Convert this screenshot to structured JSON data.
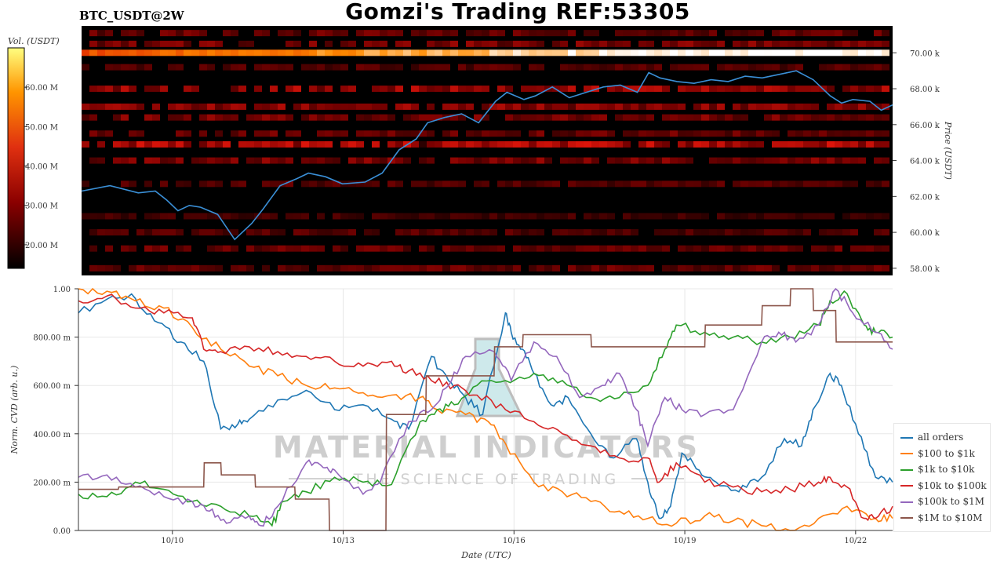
{
  "header": {
    "title": "Gomzi's Trading REF:53305",
    "symbol": "BTC_USDT@2W"
  },
  "watermark": {
    "line1": "MATERIAL INDICATORS",
    "line2": "THE SCIENCE OF TRADING"
  },
  "colors": {
    "price_line": "#3a8fd6",
    "heatmap_low": "#000000",
    "heatmap_mid": "#cc1a1a",
    "heatmap_high": "#ff8c00",
    "heatmap_max": "#ffffff"
  },
  "chart_data": [
    {
      "type": "heatmap",
      "title": "",
      "colorbar_label": "Vol. (USDT)",
      "colorbar_ticks": [
        "60.00 M",
        "50.00 M",
        "40.00 M",
        "30.00 M",
        "20.00 M"
      ],
      "colorbar_range": [
        14,
        70
      ],
      "ylabel": "Price (USDT)",
      "y_ticks": [
        "70.00 k",
        "68.00 k",
        "66.00 k",
        "64.00 k",
        "62.00 k",
        "60.00 k",
        "58.00 k"
      ],
      "ylim": [
        57.6,
        71.5
      ],
      "xlim_days": [
        0,
        14.3
      ],
      "price_series": {
        "name": "BTC_USDT",
        "x": [
          0,
          0.5,
          1,
          1.3,
          1.5,
          1.7,
          1.9,
          2.1,
          2.4,
          2.7,
          3.0,
          3.2,
          3.5,
          3.8,
          4.0,
          4.3,
          4.6,
          5.0,
          5.3,
          5.6,
          5.9,
          6.1,
          6.4,
          6.7,
          7.0,
          7.3,
          7.5,
          7.8,
          8.0,
          8.3,
          8.6,
          8.9,
          9.2,
          9.5,
          9.8,
          10.0,
          10.2,
          10.5,
          10.8,
          11.1,
          11.4,
          11.7,
          12.0,
          12.3,
          12.6,
          12.9,
          13.2,
          13.4,
          13.6,
          13.9,
          14.1,
          14.3
        ],
        "y": [
          62.3,
          62.6,
          62.2,
          62.3,
          61.8,
          61.2,
          61.5,
          61.4,
          61.0,
          59.6,
          60.5,
          61.3,
          62.6,
          63.0,
          63.3,
          63.1,
          62.7,
          62.8,
          63.3,
          64.6,
          65.2,
          66.1,
          66.4,
          66.6,
          66.1,
          67.3,
          67.8,
          67.4,
          67.6,
          68.1,
          67.5,
          67.8,
          68.1,
          68.2,
          67.8,
          68.9,
          68.6,
          68.4,
          68.3,
          68.5,
          68.4,
          68.7,
          68.6,
          68.8,
          69.0,
          68.5,
          67.6,
          67.2,
          67.4,
          67.3,
          66.8,
          67.1
        ]
      },
      "liquidity_bands": [
        {
          "price": 71.1,
          "intensity": 0.3
        },
        {
          "price": 70.5,
          "intensity": 0.35
        },
        {
          "price": 70.0,
          "intensity": 0.8
        },
        {
          "price": 69.2,
          "intensity": 0.25
        },
        {
          "price": 68.0,
          "intensity": 0.45
        },
        {
          "price": 67.0,
          "intensity": 0.4
        },
        {
          "price": 66.4,
          "intensity": 0.35
        },
        {
          "price": 65.5,
          "intensity": 0.3
        },
        {
          "price": 64.9,
          "intensity": 0.5
        },
        {
          "price": 64.0,
          "intensity": 0.35
        },
        {
          "price": 62.7,
          "intensity": 0.25
        },
        {
          "price": 60.9,
          "intensity": 0.2
        },
        {
          "price": 60.0,
          "intensity": 0.25
        },
        {
          "price": 59.1,
          "intensity": 0.3
        },
        {
          "price": 58.0,
          "intensity": 0.3
        }
      ]
    },
    {
      "type": "line",
      "title": "",
      "xlabel": "Date (UTC)",
      "ylabel": "Norm. CVD (arb. u.)",
      "x_ticks": [
        "10/10",
        "10/13",
        "10/16",
        "10/19",
        "10/22"
      ],
      "x_tick_days": [
        1.65,
        4.65,
        7.65,
        10.65,
        13.65
      ],
      "y_ticks": [
        "1.00",
        "800.00 m",
        "600.00 m",
        "400.00 m",
        "200.00 m",
        "0.00"
      ],
      "ylim": [
        0,
        1
      ],
      "xlim_days": [
        0,
        14.3
      ],
      "series": [
        {
          "name": "all orders",
          "color": "#1f77b4",
          "x": [
            0,
            0.6,
            1.0,
            1.4,
            1.8,
            2.2,
            2.5,
            2.8,
            3.0,
            3.5,
            4.0,
            4.5,
            5.0,
            5.5,
            5.8,
            6.2,
            6.5,
            6.8,
            7.1,
            7.5,
            7.6,
            7.8,
            8.0,
            8.3,
            8.6,
            9.0,
            9.4,
            9.8,
            10.0,
            10.2,
            10.4,
            10.6,
            10.9,
            11.2,
            11.6,
            12.0,
            12.4,
            12.7,
            12.9,
            13.2,
            13.4,
            13.7,
            14.0,
            14.3
          ],
          "y": [
            0.9,
            0.97,
            0.96,
            0.86,
            0.78,
            0.7,
            0.42,
            0.44,
            0.46,
            0.54,
            0.58,
            0.5,
            0.52,
            0.46,
            0.42,
            0.72,
            0.62,
            0.55,
            0.48,
            0.9,
            0.82,
            0.75,
            0.65,
            0.52,
            0.55,
            0.4,
            0.3,
            0.38,
            0.2,
            0.05,
            0.1,
            0.32,
            0.25,
            0.2,
            0.16,
            0.22,
            0.38,
            0.35,
            0.5,
            0.65,
            0.6,
            0.4,
            0.22,
            0.2
          ]
        },
        {
          "name": "$100 to $1k",
          "color": "#ff7f0e",
          "x": [
            0,
            0.5,
            1.0,
            1.5,
            2.0,
            2.5,
            3.0,
            3.5,
            4.0,
            4.5,
            5.0,
            5.5,
            6.0,
            6.3,
            6.8,
            7.2,
            7.5,
            8.0,
            8.5,
            9.0,
            9.5,
            10.0,
            10.5,
            11.0,
            11.5,
            12.0,
            12.5,
            13.0,
            13.5,
            14.0,
            14.3
          ],
          "y": [
            1.0,
            0.99,
            0.95,
            0.92,
            0.84,
            0.75,
            0.68,
            0.64,
            0.6,
            0.59,
            0.57,
            0.56,
            0.55,
            0.5,
            0.48,
            0.45,
            0.36,
            0.2,
            0.16,
            0.12,
            0.08,
            0.05,
            0.03,
            0.06,
            0.04,
            0.02,
            0.0,
            0.05,
            0.1,
            0.05,
            0.05
          ]
        },
        {
          "name": "$1k to $10k",
          "color": "#2ca02c",
          "x": [
            0,
            0.5,
            1.0,
            1.5,
            2.0,
            2.5,
            3.0,
            3.4,
            3.6,
            4.0,
            4.5,
            5.0,
            5.5,
            6.0,
            6.3,
            6.6,
            7.0,
            7.5,
            8.0,
            8.5,
            9.0,
            9.5,
            10.0,
            10.3,
            10.5,
            11.0,
            11.5,
            12.0,
            12.5,
            13.0,
            13.2,
            13.5,
            13.8,
            14.0,
            14.3
          ],
          "y": [
            0.15,
            0.14,
            0.2,
            0.17,
            0.12,
            0.1,
            0.06,
            0.02,
            0.12,
            0.16,
            0.22,
            0.2,
            0.19,
            0.45,
            0.5,
            0.52,
            0.6,
            0.62,
            0.65,
            0.62,
            0.55,
            0.55,
            0.6,
            0.75,
            0.85,
            0.82,
            0.8,
            0.78,
            0.8,
            0.85,
            0.95,
            0.98,
            0.85,
            0.82,
            0.8
          ]
        },
        {
          "name": "$10k to $100k",
          "color": "#d62728",
          "x": [
            0,
            0.5,
            1.0,
            1.5,
            2.0,
            2.2,
            2.5,
            3.0,
            3.5,
            4.0,
            4.5,
            5.0,
            5.5,
            5.8,
            6.2,
            6.6,
            7.0,
            7.5,
            8.0,
            8.5,
            9.0,
            9.5,
            10.0,
            10.2,
            10.5,
            11.0,
            11.5,
            12.0,
            12.5,
            13.0,
            13.2,
            13.5,
            13.8,
            14.0,
            14.3
          ],
          "y": [
            0.95,
            0.97,
            0.92,
            0.9,
            0.88,
            0.75,
            0.74,
            0.76,
            0.74,
            0.72,
            0.7,
            0.68,
            0.7,
            0.66,
            0.62,
            0.6,
            0.56,
            0.5,
            0.45,
            0.4,
            0.35,
            0.3,
            0.3,
            0.2,
            0.28,
            0.2,
            0.18,
            0.16,
            0.17,
            0.2,
            0.22,
            0.18,
            0.05,
            0.05,
            0.1
          ]
        },
        {
          "name": "$100k to $1M",
          "color": "#9467bd",
          "x": [
            0,
            0.5,
            1.0,
            1.5,
            2.0,
            2.3,
            2.6,
            3.0,
            3.2,
            3.5,
            4.0,
            4.3,
            4.5,
            5.0,
            5.3,
            5.8,
            6.2,
            6.5,
            6.8,
            7.3,
            7.6,
            8.0,
            8.4,
            8.8,
            9.2,
            9.5,
            9.8,
            10.0,
            10.3,
            10.6,
            11.0,
            11.5,
            12.0,
            12.3,
            12.6,
            13.0,
            13.3,
            13.6,
            14.0,
            14.3
          ],
          "y": [
            0.22,
            0.23,
            0.18,
            0.14,
            0.12,
            0.08,
            0.03,
            0.06,
            0.02,
            0.1,
            0.28,
            0.26,
            0.25,
            0.15,
            0.2,
            0.45,
            0.5,
            0.6,
            0.72,
            0.74,
            0.62,
            0.78,
            0.72,
            0.55,
            0.6,
            0.65,
            0.5,
            0.35,
            0.55,
            0.5,
            0.48,
            0.5,
            0.78,
            0.82,
            0.78,
            0.85,
            1.0,
            0.9,
            0.82,
            0.75
          ]
        },
        {
          "name": "$1M to $10M",
          "color": "#8c564b",
          "x": [
            0,
            0.7,
            0.71,
            2.2,
            2.21,
            2.5,
            2.51,
            3.1,
            3.11,
            3.8,
            3.81,
            4.4,
            4.41,
            4.45,
            4.46,
            5.4,
            5.41,
            6.1,
            6.11,
            6.3,
            6.31,
            7.3,
            7.31,
            7.8,
            7.81,
            8.5,
            8.51,
            9.0,
            9.01,
            11.0,
            11.01,
            12.0,
            12.01,
            12.5,
            12.51,
            12.9,
            12.91,
            13.3,
            13.31,
            14.3
          ],
          "y": [
            0.17,
            0.17,
            0.18,
            0.18,
            0.28,
            0.28,
            0.23,
            0.23,
            0.18,
            0.18,
            0.13,
            0.13,
            0.0,
            0.0,
            0.0,
            0.0,
            0.48,
            0.48,
            0.64,
            0.64,
            0.64,
            0.64,
            0.76,
            0.76,
            0.81,
            0.81,
            0.81,
            0.81,
            0.76,
            0.76,
            0.85,
            0.85,
            0.93,
            0.93,
            1.0,
            1.0,
            0.91,
            0.91,
            0.78,
            0.78
          ]
        }
      ]
    }
  ]
}
